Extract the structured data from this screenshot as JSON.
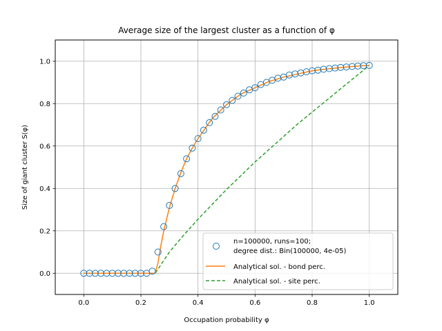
{
  "chart_data": {
    "type": "line",
    "title": "Average size of the largest cluster as a function of φ",
    "xlabel": "Occupation probability φ",
    "ylabel": "Size of giant cluster S(φ)",
    "xlim": [
      -0.1,
      1.1
    ],
    "ylim": [
      -0.1,
      1.1
    ],
    "xticks": [
      "0.0",
      "0.2",
      "0.4",
      "0.6",
      "0.8",
      "1.0"
    ],
    "yticks": [
      "0.0",
      "0.2",
      "0.4",
      "0.6",
      "0.8",
      "1.0"
    ],
    "grid": true,
    "legend_position": "lower right",
    "colors": {
      "simulation": "#1f77b4",
      "bond": "#ff7f0e",
      "site": "#2ca02c",
      "grid": "#b0b0b0"
    },
    "series": [
      {
        "name": "n=100000, runs=100;\ndegree dist.: Bin(100000, 4e-05)",
        "style": "markers",
        "x": [
          0.0,
          0.02,
          0.04,
          0.06,
          0.08,
          0.1,
          0.12,
          0.14,
          0.16,
          0.18,
          0.2,
          0.22,
          0.24,
          0.26,
          0.28,
          0.3,
          0.32,
          0.34,
          0.36,
          0.38,
          0.4,
          0.42,
          0.44,
          0.46,
          0.48,
          0.5,
          0.52,
          0.54,
          0.56,
          0.58,
          0.6,
          0.62,
          0.64,
          0.66,
          0.68,
          0.7,
          0.72,
          0.74,
          0.76,
          0.78,
          0.8,
          0.82,
          0.84,
          0.86,
          0.88,
          0.9,
          0.92,
          0.94,
          0.96,
          0.98,
          1.0
        ],
        "y": [
          0.0,
          0.0,
          0.0,
          0.0,
          0.0,
          0.0,
          0.0,
          0.0,
          0.0,
          0.0,
          0.0,
          0.0,
          0.01,
          0.1,
          0.22,
          0.32,
          0.4,
          0.47,
          0.54,
          0.59,
          0.635,
          0.675,
          0.71,
          0.74,
          0.77,
          0.795,
          0.815,
          0.835,
          0.85,
          0.865,
          0.875,
          0.89,
          0.9,
          0.91,
          0.92,
          0.925,
          0.935,
          0.94,
          0.945,
          0.95,
          0.955,
          0.958,
          0.962,
          0.965,
          0.968,
          0.971,
          0.973,
          0.975,
          0.977,
          0.979,
          0.98
        ]
      },
      {
        "name": "Analytical sol. - bond perc.",
        "style": "solid",
        "x": [
          0.0,
          0.1,
          0.2,
          0.25,
          0.26,
          0.27,
          0.28,
          0.3,
          0.32,
          0.34,
          0.36,
          0.38,
          0.4,
          0.45,
          0.5,
          0.55,
          0.6,
          0.65,
          0.7,
          0.75,
          0.8,
          0.85,
          0.9,
          0.95,
          1.0
        ],
        "y": [
          0.0,
          0.0,
          0.0,
          0.0,
          0.05,
          0.13,
          0.2,
          0.31,
          0.4,
          0.475,
          0.54,
          0.59,
          0.635,
          0.73,
          0.795,
          0.845,
          0.875,
          0.905,
          0.925,
          0.94,
          0.955,
          0.963,
          0.97,
          0.976,
          0.98
        ]
      },
      {
        "name": "Analytical sol. - site perc.",
        "style": "dashed",
        "x": [
          0.0,
          0.1,
          0.2,
          0.25,
          0.3,
          0.35,
          0.4,
          0.45,
          0.5,
          0.55,
          0.6,
          0.65,
          0.7,
          0.75,
          0.8,
          0.85,
          0.9,
          0.95,
          1.0
        ],
        "y": [
          0.0,
          0.0,
          0.0,
          0.0,
          0.1,
          0.18,
          0.255,
          0.325,
          0.395,
          0.46,
          0.525,
          0.585,
          0.645,
          0.705,
          0.76,
          0.815,
          0.87,
          0.925,
          0.98
        ]
      }
    ]
  }
}
